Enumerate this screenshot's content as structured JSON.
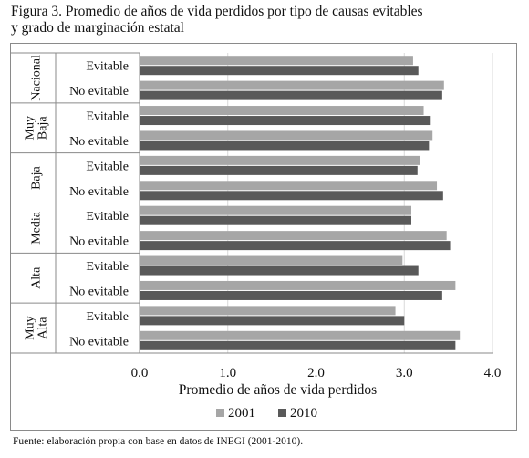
{
  "title_line1": "Figura 3. Promedio de años de vida perdidos por tipo de causas evitables",
  "title_line2": "y grado de marginación estatal",
  "source": "Fuente: elaboración propia con base en datos de INEGI (2001-2010).",
  "chart_data": {
    "type": "bar",
    "orientation": "horizontal",
    "title": "",
    "xlabel": "Promedio de años de vida perdidos",
    "ylabel": "",
    "xlim": [
      0,
      4
    ],
    "xticks": [
      "0.0",
      "1.0",
      "2.0",
      "3.0",
      "4.0"
    ],
    "grid": true,
    "legend_position": "bottom",
    "groups": [
      "Nacional",
      "Muy Baja",
      "Baja",
      "Media",
      "Alta",
      "Muy Alta"
    ],
    "categories": [
      "Evitable",
      "No evitable"
    ],
    "series": [
      {
        "name": "2001",
        "color": "#a6a6a6",
        "values": [
          [
            3.1,
            3.45
          ],
          [
            3.22,
            3.32
          ],
          [
            3.18,
            3.37
          ],
          [
            3.08,
            3.48
          ],
          [
            2.98,
            3.58
          ],
          [
            2.9,
            3.63
          ]
        ]
      },
      {
        "name": "2010",
        "color": "#595959",
        "values": [
          [
            3.16,
            3.43
          ],
          [
            3.3,
            3.28
          ],
          [
            3.15,
            3.44
          ],
          [
            3.08,
            3.52
          ],
          [
            3.16,
            3.43
          ],
          [
            3.0,
            3.58
          ]
        ]
      }
    ]
  }
}
